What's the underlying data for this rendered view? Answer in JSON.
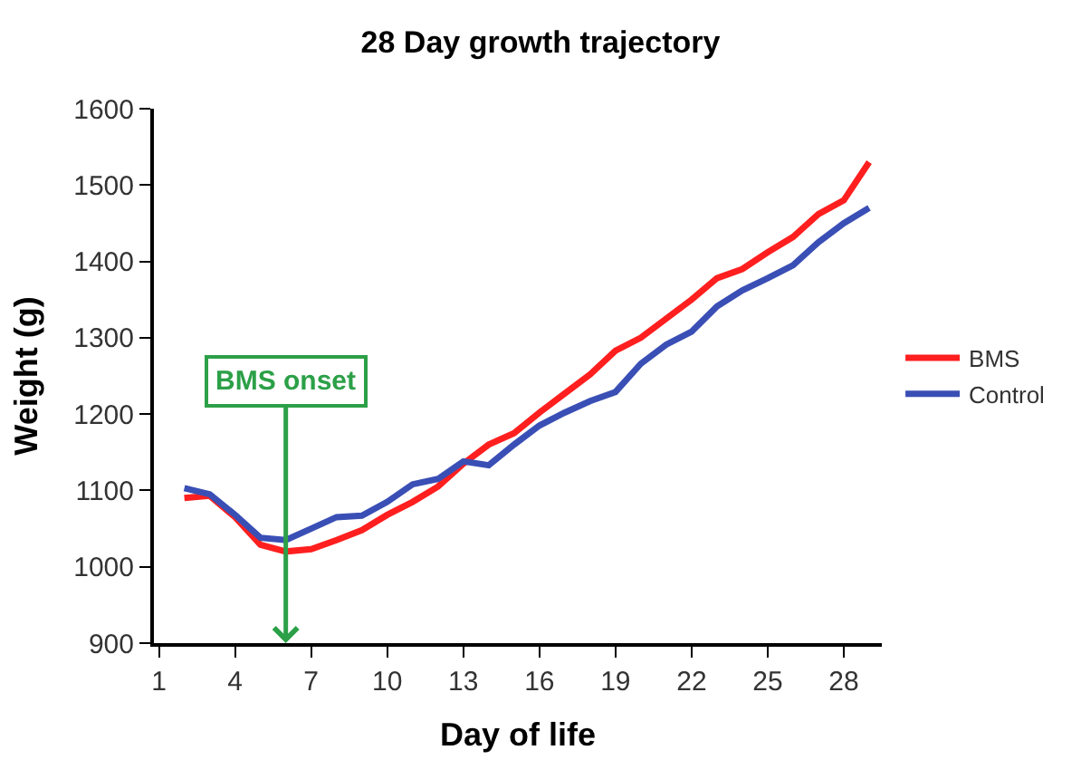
{
  "chart_data": {
    "type": "line",
    "title": "28 Day growth trajectory",
    "xlabel": "Day of life",
    "ylabel": "Weight (g)",
    "x": [
      2,
      3,
      4,
      5,
      6,
      7,
      8,
      9,
      10,
      11,
      12,
      13,
      14,
      15,
      16,
      17,
      18,
      19,
      20,
      21,
      22,
      23,
      24,
      25,
      26,
      27,
      28,
      29
    ],
    "series": [
      {
        "name": "BMS",
        "color": "#ff1f1f",
        "values": [
          1090,
          1093,
          1065,
          1029,
          1020,
          1023,
          1035,
          1048,
          1068,
          1085,
          1105,
          1135,
          1160,
          1175,
          1202,
          1227,
          1252,
          1283,
          1300,
          1325,
          1350,
          1378,
          1390,
          1412,
          1432,
          1462,
          1480,
          1530
        ]
      },
      {
        "name": "Control",
        "color": "#3a4fb5",
        "values": [
          1103,
          1095,
          1068,
          1038,
          1035,
          1050,
          1065,
          1067,
          1085,
          1108,
          1115,
          1138,
          1133,
          1160,
          1185,
          1202,
          1217,
          1229,
          1266,
          1291,
          1308,
          1341,
          1362,
          1378,
          1395,
          1425,
          1450,
          1470
        ]
      }
    ],
    "xlim": [
      0.8,
      29.5
    ],
    "xticks": [
      1,
      4,
      7,
      10,
      13,
      16,
      19,
      22,
      25,
      28
    ],
    "ylim": [
      900,
      1600
    ],
    "yticks": [
      900,
      1000,
      1100,
      1200,
      1300,
      1400,
      1500,
      1600
    ],
    "ref_lines": [
      {
        "axis": "x",
        "value": 6,
        "label": "BMS onset",
        "color": "#2ca048"
      }
    ],
    "legend": "right",
    "marker": "none",
    "line_style": "solid"
  }
}
